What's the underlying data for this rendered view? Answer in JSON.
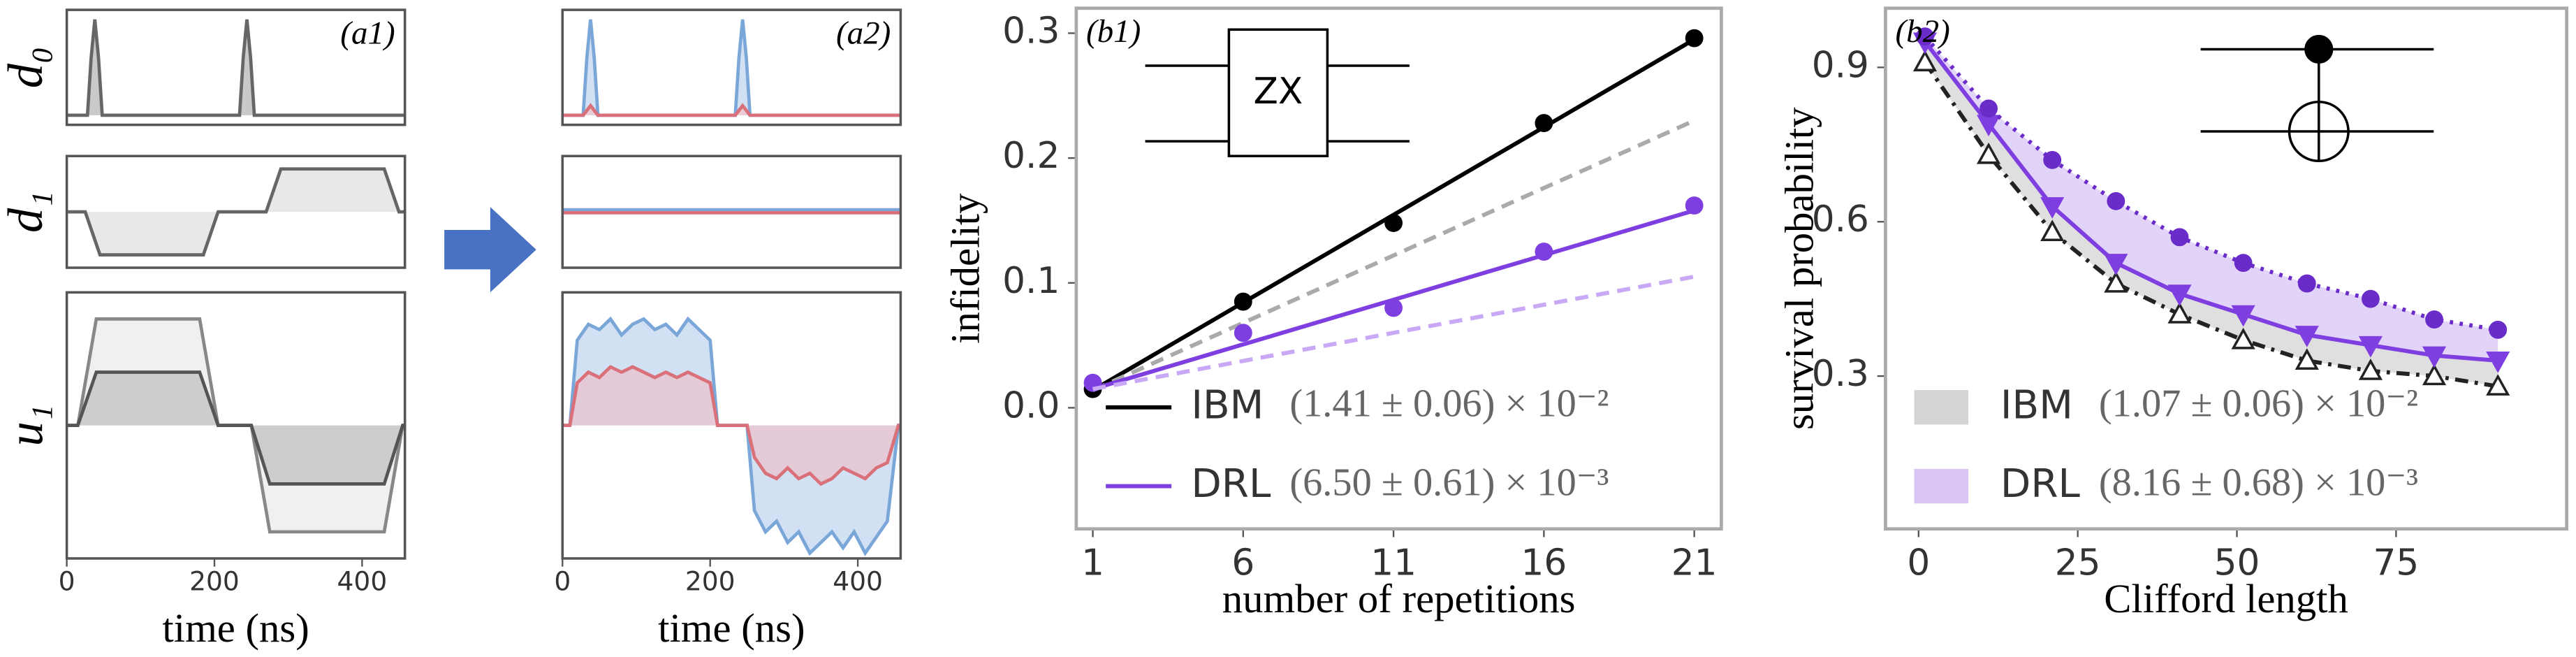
{
  "chart_data": [
    {
      "type": "area",
      "ylabel": "d₀",
      "panel_label": "(a1)",
      "xlim": [
        0,
        458
      ],
      "ylim": [
        -0.1,
        1.1
      ],
      "x": [
        0,
        28,
        33,
        38,
        43,
        48,
        234,
        239,
        244,
        249,
        254,
        458
      ],
      "series": [
        {
          "color": "#666666",
          "fill": "#bbbbbb",
          "values": [
            0,
            0,
            0.6,
            1,
            0.6,
            0,
            0,
            0.6,
            1,
            0.6,
            0,
            0
          ]
        }
      ]
    },
    {
      "type": "area",
      "ylabel": "d₁",
      "xlim": [
        0,
        458
      ],
      "ylim": [
        -1.3,
        1.3
      ],
      "x": [
        0,
        25,
        45,
        185,
        205,
        270,
        290,
        430,
        450,
        458
      ],
      "series": [
        {
          "color": "#666666",
          "fill": "#e2e2e2",
          "values": [
            0,
            0,
            -1,
            -1,
            0,
            0,
            1,
            1,
            0,
            0
          ]
        }
      ]
    },
    {
      "type": "area",
      "ylabel": "u₁",
      "xlabel": "time (ns)",
      "xlim": [
        0,
        458
      ],
      "ylim": [
        -1.25,
        1.25
      ],
      "xticks": [
        0,
        200,
        400
      ],
      "x": [
        0,
        15,
        40,
        180,
        205,
        250,
        275,
        430,
        455,
        458
      ],
      "series": [
        {
          "color": "#888888",
          "fill": "#ececec",
          "values": [
            0,
            0,
            1,
            1,
            0,
            0,
            -1,
            -1,
            0,
            0
          ]
        },
        {
          "color": "#555555",
          "fill": "#c4c4c4",
          "values": [
            0,
            0,
            0.5,
            0.5,
            0,
            0,
            -0.55,
            -0.55,
            0,
            0
          ]
        }
      ]
    },
    {
      "type": "area",
      "panel_label": "(a2)",
      "xlim": [
        0,
        458
      ],
      "ylim": [
        -0.1,
        1.1
      ],
      "x": [
        0,
        28,
        33,
        38,
        43,
        48,
        234,
        239,
        244,
        249,
        254,
        458
      ],
      "series": [
        {
          "color": "#7aa6d8",
          "fill": "#c6d9f0",
          "values": [
            0,
            0,
            0.6,
            1,
            0.6,
            0,
            0,
            0.6,
            1,
            0.6,
            0,
            0
          ]
        },
        {
          "color": "#d9707a",
          "fill": "#f0c8cc",
          "values": [
            0,
            0,
            0.05,
            0.1,
            0.05,
            0,
            0,
            0.05,
            0.1,
            0.05,
            0,
            0
          ]
        }
      ]
    },
    {
      "type": "area",
      "xlim": [
        0,
        458
      ],
      "ylim": [
        -1.3,
        1.3
      ],
      "x": [
        0,
        458
      ],
      "series": [
        {
          "color": "#7aa6d8",
          "values": [
            0.05,
            0.05
          ]
        },
        {
          "color": "#d9707a",
          "values": [
            -0.02,
            -0.02
          ]
        }
      ]
    },
    {
      "type": "area",
      "xlabel": "time (ns)",
      "xlim": [
        0,
        458
      ],
      "ylim": [
        -1.25,
        1.25
      ],
      "xticks": [
        0,
        200,
        400
      ],
      "x": [
        0,
        10,
        20,
        35,
        50,
        65,
        80,
        95,
        110,
        125,
        140,
        155,
        170,
        185,
        200,
        210,
        250,
        260,
        275,
        290,
        305,
        320,
        335,
        350,
        365,
        380,
        395,
        410,
        425,
        440,
        455,
        458
      ],
      "series": [
        {
          "color": "#7aa6d8",
          "fill": "#c6d9f0",
          "values": [
            0,
            0,
            0.8,
            0.95,
            0.9,
            1.0,
            0.85,
            0.95,
            1.0,
            0.9,
            0.95,
            0.85,
            1.0,
            0.9,
            0.8,
            0,
            0,
            -0.8,
            -1.0,
            -0.9,
            -1.1,
            -1.0,
            -1.2,
            -1.1,
            -1.0,
            -1.15,
            -1.0,
            -1.2,
            -1.05,
            -0.9,
            0,
            0
          ]
        },
        {
          "color": "#d9707a",
          "fill": "#e8c4cf",
          "values": [
            0,
            0,
            0.4,
            0.5,
            0.45,
            0.55,
            0.5,
            0.55,
            0.5,
            0.45,
            0.5,
            0.45,
            0.5,
            0.45,
            0.4,
            0,
            0,
            -0.3,
            -0.45,
            -0.5,
            -0.4,
            -0.5,
            -0.45,
            -0.55,
            -0.5,
            -0.4,
            -0.45,
            -0.5,
            -0.4,
            -0.35,
            0,
            0
          ]
        }
      ]
    },
    {
      "type": "line",
      "panel_label": "(b1)",
      "inset_label": "ZX",
      "xlabel": "number of repetitions",
      "ylabel": "infidelity",
      "xlim": [
        0.45,
        21.9
      ],
      "ylim": [
        -0.097,
        0.32
      ],
      "xticks": [
        1,
        6,
        11,
        16,
        21
      ],
      "yticks": [
        {
          "value": 0,
          "label": "0.0"
        },
        0.1,
        0.2,
        0.3
      ],
      "legend": "lower left",
      "x": [
        1,
        6,
        11,
        16,
        21
      ],
      "series": [
        {
          "color": "#000000",
          "marker": "o",
          "line": false,
          "values": [
            0.015,
            0.085,
            0.148,
            0.228,
            0.296
          ]
        },
        {
          "name": "IBM",
          "annotation": "(1.41 ± 0.06) × 10⁻²",
          "color": "#000000",
          "x": [
            1,
            21
          ],
          "values": [
            0.014,
            0.295
          ]
        },
        {
          "color": "#aaaaaa",
          "dash": "dash",
          "x": [
            1,
            21
          ],
          "values": [
            0.014,
            0.23
          ]
        },
        {
          "color": "#7f3fe0",
          "marker": "o",
          "line": false,
          "values": [
            0.02,
            0.06,
            0.08,
            0.125,
            0.162
          ]
        },
        {
          "name": "DRL",
          "annotation": "(6.50 ± 0.61) × 10⁻³",
          "color": "#7f3fe0",
          "x": [
            1,
            21
          ],
          "values": [
            0.015,
            0.158
          ]
        },
        {
          "color": "#c9a8f5",
          "dash": "dash",
          "x": [
            1,
            21
          ],
          "values": [
            0.015,
            0.105
          ]
        }
      ]
    },
    {
      "type": "line",
      "panel_label": "(b2)",
      "xlabel": "Clifford length",
      "ylabel": "survival probability",
      "xlim": [
        -5.2,
        101.8
      ],
      "ylim": [
        0.003,
        1.015
      ],
      "xticks": [
        0,
        25,
        50,
        75
      ],
      "yticks": [
        0.3,
        0.6,
        0.9
      ],
      "legend": "lower left",
      "x": [
        1,
        11,
        21,
        31,
        41,
        51,
        61,
        71,
        81,
        91
      ],
      "series": [
        {
          "name": "IBM",
          "annotation": "(1.07 ± 0.06) × 10⁻²",
          "color": "#222222",
          "band_color": "#d4d4d4",
          "dash": "dashdot",
          "marker": "^",
          "marker_fill": "#ffffff",
          "values": [
            0.91,
            0.73,
            0.58,
            0.48,
            0.42,
            0.37,
            0.33,
            0.31,
            0.3,
            0.28
          ]
        },
        {
          "name": "DRL",
          "annotation": "(8.16 ± 0.68) × 10⁻³",
          "color": "#7f3fe0",
          "band_color": "#d8c4f5",
          "marker": "v",
          "values": [
            0.95,
            0.79,
            0.63,
            0.52,
            0.46,
            0.42,
            0.38,
            0.36,
            0.34,
            0.33
          ]
        },
        {
          "color": "#6a2cc9",
          "dash": "dot",
          "marker": "o",
          "values": [
            0.96,
            0.82,
            0.72,
            0.64,
            0.57,
            0.52,
            0.48,
            0.45,
            0.41,
            0.39
          ]
        }
      ]
    }
  ]
}
